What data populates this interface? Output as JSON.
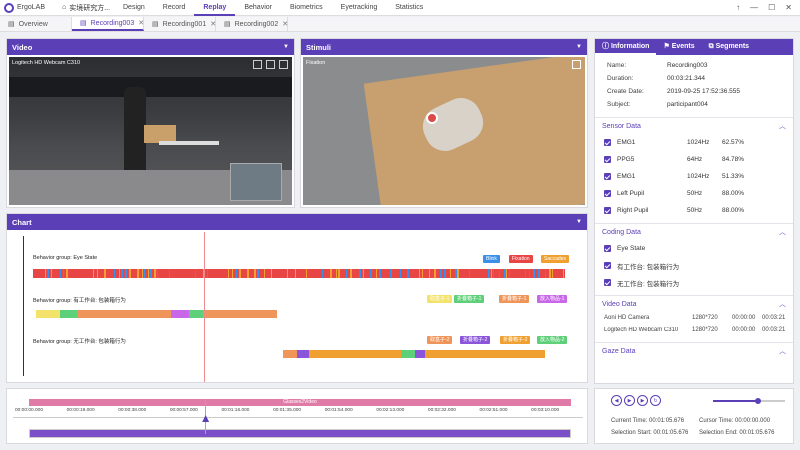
{
  "topbar": {
    "app_name": "ErgoLAB",
    "project": "实境研究方...",
    "menu": [
      "Design",
      "Record",
      "Replay",
      "Behavior",
      "Biometrics",
      "Eyetracking",
      "Statistics"
    ],
    "active_menu": "Replay",
    "window_controls": [
      "pin-icon",
      "minimize-icon",
      "maximize-icon",
      "close-icon"
    ]
  },
  "tabs": [
    {
      "label": "Overview",
      "closable": false
    },
    {
      "label": "Recording003",
      "closable": true,
      "active": true
    },
    {
      "label": "Recording001",
      "closable": true
    },
    {
      "label": "Recording002",
      "closable": true
    }
  ],
  "video_panel": {
    "title": "Video",
    "camera_label": "Logitech HD Webcam C310"
  },
  "stimuli_panel": {
    "title": "Stimuli",
    "source_label": "Fixation"
  },
  "chart_panel": {
    "title": "Chart",
    "groups": [
      {
        "label": "Behavior group: Eye State",
        "legend": [
          {
            "name": "Blink",
            "color": "#3b8fe8"
          },
          {
            "name": "Fixation",
            "color": "#e84545"
          },
          {
            "name": "Saccades",
            "color": "#f0a030"
          }
        ]
      },
      {
        "label": "Behavior group: 有工作台: 包装箱行为",
        "legend": [
          {
            "name": "取盒子-1",
            "color": "#f3e36a"
          },
          {
            "name": "折叠箱子-1",
            "color": "#5fd07a"
          },
          {
            "name": "折叠箱子-1",
            "color": "#f0955a"
          },
          {
            "name": "放入物品-1",
            "color": "#c868e8"
          }
        ]
      },
      {
        "label": "Behavior group: 无工作台: 包装箱行为",
        "legend": [
          {
            "name": "取盒子-2",
            "color": "#f0955a"
          },
          {
            "name": "折叠箱子-2",
            "color": "#8a55d8"
          },
          {
            "name": "折叠箱子-2",
            "color": "#f0a030"
          },
          {
            "name": "放入物品-2",
            "color": "#5fd07a"
          }
        ]
      }
    ]
  },
  "timeline": {
    "marker_label": "Glasses2Video",
    "ticks": [
      "00:00:00.000",
      "00:00:19.000",
      "00:00:38.000",
      "00:00:57.000",
      "00:01:16.000",
      "00:01:35.000",
      "00:01:54.000",
      "00:02:13.000",
      "00:02:32.000",
      "00:02:51.000",
      "00:03:10.000"
    ],
    "playhead_fraction": 0.325
  },
  "info_panel": {
    "tabs": [
      {
        "label": "Information",
        "icon": "info-icon"
      },
      {
        "label": "Events",
        "icon": "flag-icon"
      },
      {
        "label": "Segments",
        "icon": "segments-icon"
      }
    ],
    "fields": [
      {
        "key": "Name:",
        "value": "Recording003"
      },
      {
        "key": "Duration:",
        "value": "00:03:21.344"
      },
      {
        "key": "Create Date:",
        "value": "2019-09-25 17:52:36.555"
      },
      {
        "key": "Subject:",
        "value": "participant004"
      }
    ],
    "sensor_title": "Sensor Data",
    "sensors": [
      {
        "name": "EMG1",
        "freq": "1024Hz",
        "pct": "62.57%"
      },
      {
        "name": "PPG5",
        "freq": "64Hz",
        "pct": "84.78%"
      },
      {
        "name": "EMG1",
        "freq": "1024Hz",
        "pct": "51.33%"
      },
      {
        "name": "Left Pupil",
        "freq": "50Hz",
        "pct": "88.00%"
      },
      {
        "name": "Right Pupil",
        "freq": "50Hz",
        "pct": "88.00%"
      }
    ],
    "coding_title": "Coding Data",
    "coding": [
      "Eye State",
      "有工作台: 包装箱行为",
      "无工作台: 包装箱行为"
    ],
    "video_title": "Video Data",
    "videos": [
      {
        "name": "Aoni HD Camera",
        "res": "1280*720",
        "start": "00:00:00",
        "end": "00:03:21"
      },
      {
        "name": "Logitech HD Webcam C310",
        "res": "1280*720",
        "start": "00:00:00",
        "end": "00:03:21"
      }
    ],
    "gaze_title": "Gaze Data"
  },
  "playback": {
    "current_label": "Current Time:",
    "current": "00:01:05.676",
    "cursor_label": "Cursor Time:",
    "cursor": "00:00:00.000",
    "sel_start_label": "Selection Start:",
    "sel_start": "00:01:05.676",
    "sel_end_label": "Selection End:",
    "sel_end": "00:01:05.676"
  }
}
